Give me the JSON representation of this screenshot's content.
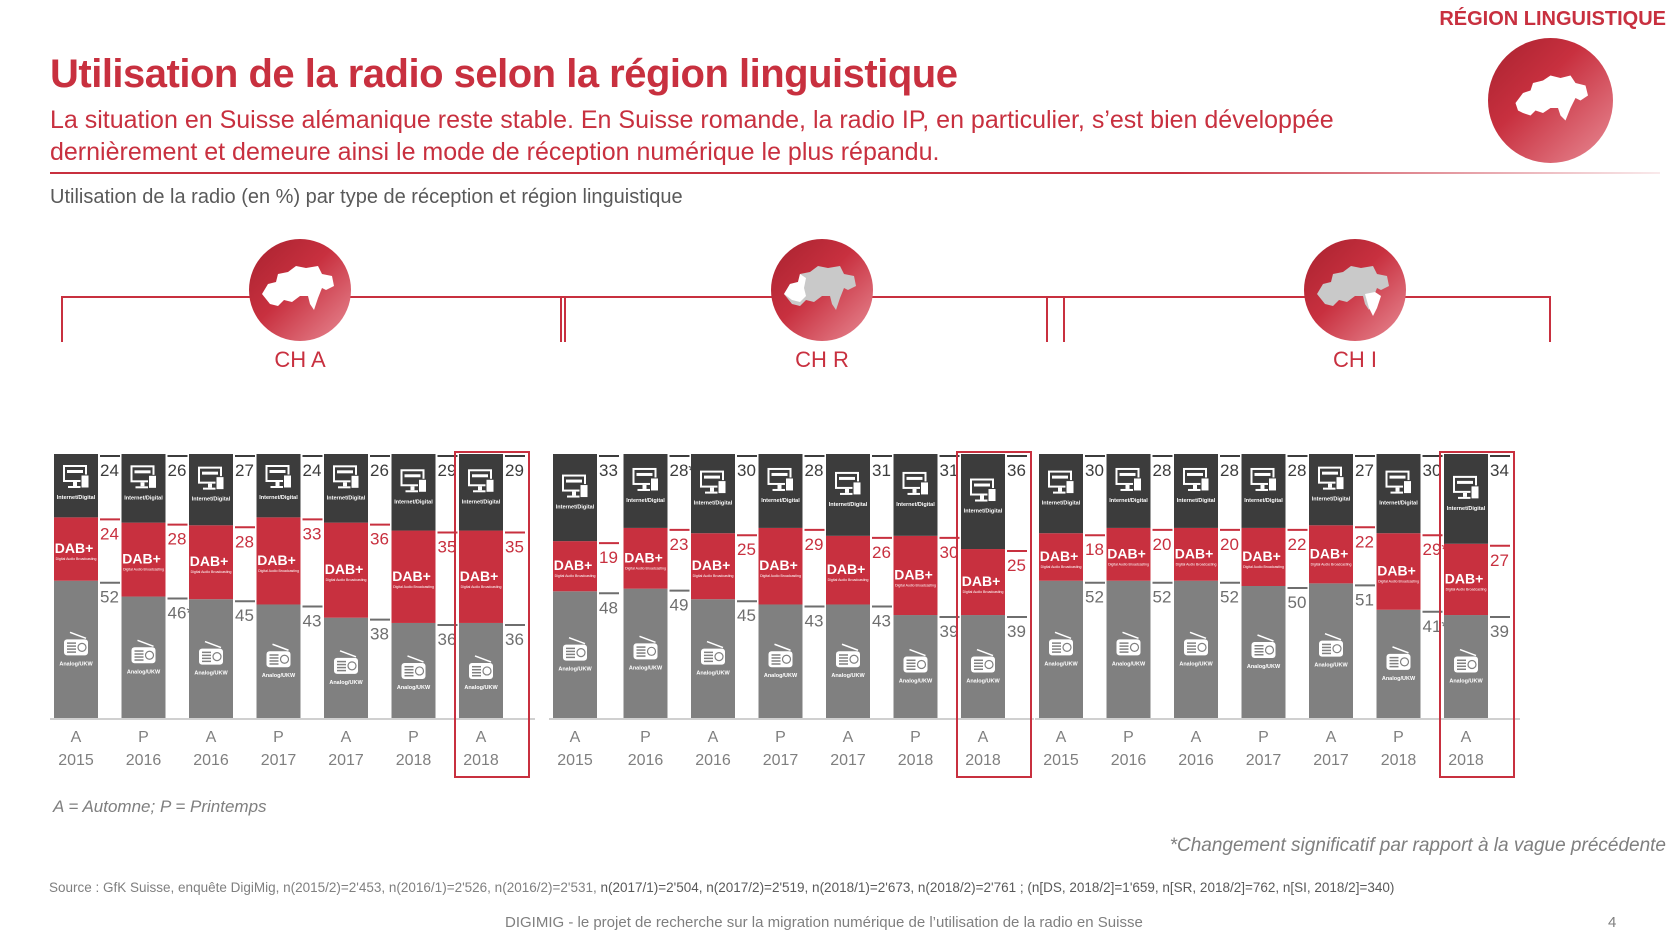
{
  "header": {
    "title": "Utilisation de la radio selon la région linguistique",
    "subtitle": "La situation en Suisse alémanique reste stable. En Suisse romande, la radio IP, en particulier, s’est bien développée dernièrement et demeure ainsi le mode de réception numérique le plus répandu.",
    "region_tag": "RÉGION LINGUISTIQUE",
    "chart_caption": "Utilisation de la radio (en %) par type de réception et région linguistique"
  },
  "segment_labels": {
    "internet": "Internet/Digital",
    "dab": "DAB+",
    "dab_sub": "Digital Audio Broadcasting",
    "analog": "Analog/UKW"
  },
  "colors": {
    "brand_red": "#c8303f",
    "internet": "#3c3c3c",
    "dab": "#c8303f",
    "analog": "#808080",
    "value_dark": "#3c3c3c",
    "value_grey": "#6e6e6e"
  },
  "chart_data": {
    "type": "bar",
    "stacked": true,
    "title": "Utilisation de la radio (en %) par type de réception et région linguistique",
    "categories": [
      {
        "season": "A",
        "year": "2015"
      },
      {
        "season": "P",
        "year": "2016"
      },
      {
        "season": "A",
        "year": "2016"
      },
      {
        "season": "P",
        "year": "2017"
      },
      {
        "season": "A",
        "year": "2017"
      },
      {
        "season": "P",
        "year": "2018"
      },
      {
        "season": "A",
        "year": "2018"
      }
    ],
    "highlighted_category_index": 6,
    "series_names": [
      "Analog/UKW",
      "DAB+",
      "Internet/Digital"
    ],
    "panels": [
      {
        "name": "CH A",
        "analog": [
          52,
          46,
          45,
          43,
          38,
          36,
          36
        ],
        "dab": [
          24,
          28,
          28,
          33,
          36,
          35,
          35
        ],
        "internet": [
          24,
          26,
          27,
          24,
          26,
          29,
          29
        ],
        "analog_labels": [
          "52",
          "46*",
          "45",
          "43",
          "38",
          "36",
          "36"
        ],
        "dab_labels": [
          "24",
          "28",
          "28",
          "33",
          "36",
          "35",
          "35"
        ],
        "internet_labels": [
          "24",
          "26",
          "27",
          "24",
          "26",
          "29",
          "29"
        ]
      },
      {
        "name": "CH R",
        "analog": [
          48,
          49,
          45,
          43,
          43,
          39,
          39
        ],
        "dab": [
          19,
          23,
          25,
          29,
          26,
          30,
          25
        ],
        "internet": [
          33,
          28,
          30,
          28,
          31,
          31,
          36
        ],
        "analog_labels": [
          "48",
          "49",
          "45",
          "43",
          "43",
          "39",
          "39"
        ],
        "dab_labels": [
          "19",
          "23",
          "25",
          "29",
          "26",
          "30",
          "25"
        ],
        "internet_labels": [
          "33",
          "28*",
          "30",
          "28",
          "31",
          "31",
          "36"
        ]
      },
      {
        "name": "CH I",
        "analog": [
          52,
          52,
          52,
          50,
          51,
          41,
          39
        ],
        "dab": [
          18,
          20,
          20,
          22,
          22,
          29,
          27
        ],
        "internet": [
          30,
          28,
          28,
          28,
          27,
          30,
          34
        ],
        "analog_labels": [
          "52",
          "52",
          "52",
          "50",
          "51",
          "41*",
          "39"
        ],
        "dab_labels": [
          "18",
          "20",
          "20",
          "22",
          "22",
          "29*",
          "27"
        ],
        "internet_labels": [
          "30",
          "28",
          "28",
          "28",
          "27",
          "30",
          "34"
        ]
      }
    ],
    "ylim": [
      0,
      100
    ],
    "xlabel": "",
    "ylabel": "%"
  },
  "notes": {
    "legend": "A = Automne; P = Printemps",
    "significance": "*Changement significatif par rapport à la vague précédente",
    "source_a": "Source : GfK Suisse, enquête DigiMig, n(2015/2)=2'453, n(2016/1)=2'526, n(2016/2)=2'531, ",
    "source_b": "n(2017/1)=2'504, n(2017/2)=2'519, n(2018/1)=2'673, n(2018/2)=2'761 ; (n[DS, 2018/2]=1'659, n[SR, 2018/2]=762, n[SI, 2018/2]=340)",
    "footer": "DIGIMIG - le projet de recherche sur la migration numérique de l’utilisation de la radio en Suisse",
    "page": "4"
  }
}
